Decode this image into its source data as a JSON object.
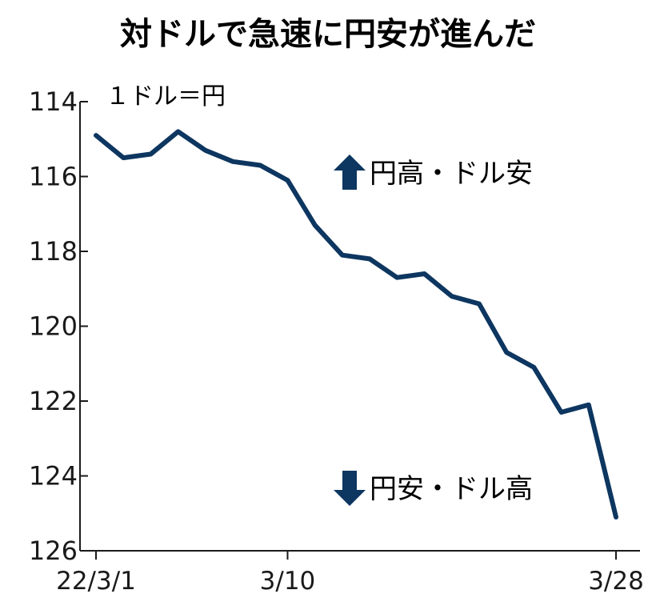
{
  "chart_data": {
    "type": "line",
    "title": "対ドルで急速に円安が進んだ",
    "unit_label": "１ドル＝円",
    "y_inverted": true,
    "ylim": [
      126,
      114
    ],
    "y_ticks": [
      114,
      116,
      118,
      120,
      122,
      124,
      126
    ],
    "y_tick_labels": [
      "114",
      "116",
      "118",
      "120",
      "122",
      "124",
      "126"
    ],
    "x_tick_labels": [
      "22/3/1",
      "3/10",
      "3/28"
    ],
    "grid": false,
    "series": [
      {
        "color": "#0d3660",
        "values": [
          114.9,
          115.5,
          115.4,
          114.8,
          115.3,
          115.6,
          115.7,
          116.1,
          117.3,
          118.1,
          118.2,
          118.7,
          118.6,
          119.2,
          119.4,
          120.7,
          121.1,
          122.3,
          122.1,
          125.1
        ]
      }
    ],
    "annotations": [
      {
        "arrow": "up",
        "text": "円高・ドル安"
      },
      {
        "arrow": "down",
        "text": "円安・ドル高"
      }
    ]
  },
  "colors": {
    "line": "#0d3660",
    "axis": "#1a1a1a",
    "arrow": "#0d3660"
  }
}
